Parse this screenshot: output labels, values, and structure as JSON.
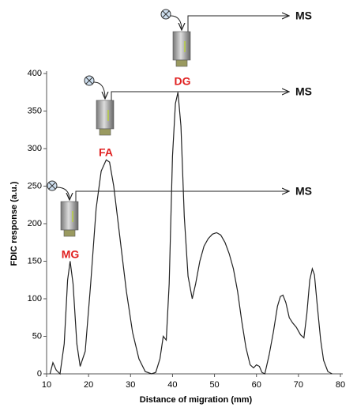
{
  "chart_data": {
    "type": "line",
    "x_label": "Distance of migration (mm)",
    "y_label": "FDIC response (a.u.)",
    "x": [
      10.8,
      11.5,
      12.3,
      13.2,
      14.2,
      15.0,
      15.6,
      16.3,
      17.2,
      18.0,
      19.2,
      20.5,
      21.8,
      23.0,
      24.2,
      25.0,
      26.0,
      27.5,
      29.0,
      30.5,
      32.0,
      33.5,
      35.0,
      36.0,
      37.0,
      37.8,
      38.5,
      39.2,
      40.0,
      40.7,
      41.3,
      42.0,
      42.8,
      43.7,
      44.7,
      45.5,
      46.5,
      47.5,
      48.5,
      49.5,
      50.5,
      51.5,
      52.5,
      53.5,
      54.5,
      55.5,
      56.5,
      57.5,
      58.5,
      59.3,
      60.0,
      60.7,
      61.3,
      62.0,
      63.0,
      64.0,
      65.0,
      65.7,
      66.3,
      67.0,
      67.8,
      68.6,
      69.5,
      70.5,
      71.3,
      72.0,
      72.7,
      73.3,
      73.8,
      74.5,
      75.3,
      76.0,
      77.0,
      78.0
    ],
    "values": [
      0,
      15,
      5,
      0,
      40,
      125,
      150,
      120,
      40,
      10,
      30,
      120,
      220,
      270,
      285,
      282,
      250,
      180,
      110,
      55,
      20,
      3,
      0,
      2,
      20,
      50,
      45,
      120,
      290,
      360,
      375,
      330,
      210,
      130,
      100,
      120,
      150,
      170,
      180,
      186,
      188,
      185,
      175,
      160,
      140,
      110,
      70,
      35,
      12,
      8,
      12,
      10,
      2,
      0,
      25,
      55,
      90,
      103,
      105,
      95,
      75,
      68,
      62,
      52,
      48,
      80,
      125,
      140,
      132,
      90,
      45,
      18,
      3,
      0
    ],
    "color": "#222222",
    "xlim": [
      10,
      80
    ],
    "xticks": [
      10,
      20,
      30,
      40,
      50,
      60,
      70,
      80
    ],
    "ylim": [
      0,
      400
    ],
    "yticks": [
      0,
      50,
      100,
      150,
      200,
      250,
      300,
      350,
      400
    ],
    "annotations": [
      {
        "label": "MG",
        "target": "MS"
      },
      {
        "label": "FA",
        "target": "MS"
      },
      {
        "label": "DG",
        "target": "MS"
      }
    ]
  }
}
